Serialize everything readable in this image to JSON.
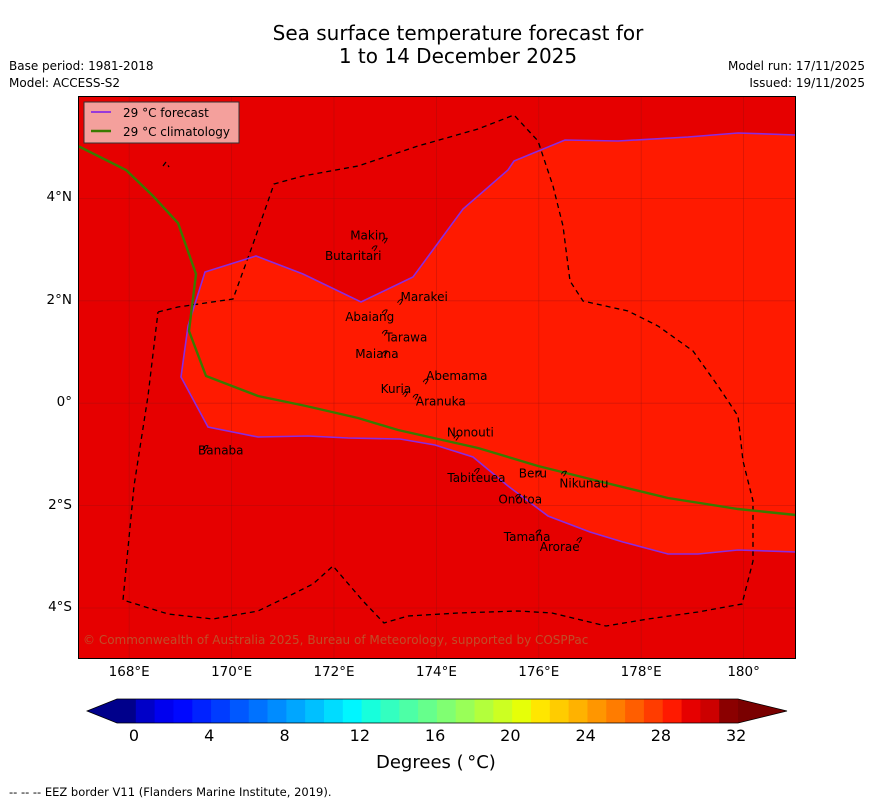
{
  "title": {
    "line1": "Sea surface temperature forecast for",
    "line2": "1 to 14 December 2025"
  },
  "meta": {
    "base_period": "Base period: 1981-2018",
    "model": "Model: ACCESS-S2",
    "model_run": "Model run: 17/11/2025",
    "issued": "Issued: 19/11/2025"
  },
  "legend": {
    "forecast": "29 °C  forecast",
    "climatology": "29 °C  climatology"
  },
  "lat_labels": [
    "4°N",
    "2°N",
    "0°",
    "2°S",
    "4°S"
  ],
  "lon_labels": [
    "168°E",
    "170°E",
    "172°E",
    "174°E",
    "176°E",
    "178°E",
    "180°"
  ],
  "islands": [
    {
      "name": "Makin",
      "lon": 173.0,
      "lat": 3.2
    },
    {
      "name": "Butaritari",
      "lon": 172.8,
      "lat": 3.05
    },
    {
      "name": "Marakei",
      "lon": 173.3,
      "lat": 2.0
    },
    {
      "name": "Abaiang",
      "lon": 173.0,
      "lat": 1.8
    },
    {
      "name": "Tarawa",
      "lon": 173.0,
      "lat": 1.4
    },
    {
      "name": "Maiana",
      "lon": 173.0,
      "lat": 1.0
    },
    {
      "name": "Abemama",
      "lon": 173.8,
      "lat": 0.45
    },
    {
      "name": "Kuria",
      "lon": 173.4,
      "lat": 0.2
    },
    {
      "name": "Aranuka",
      "lon": 173.6,
      "lat": 0.15
    },
    {
      "name": "Nonouti",
      "lon": 174.4,
      "lat": -0.65
    },
    {
      "name": "Banaba",
      "lon": 169.5,
      "lat": -0.85
    },
    {
      "name": "Beru",
      "lon": 176.0,
      "lat": -1.35
    },
    {
      "name": "Nikunau",
      "lon": 176.5,
      "lat": -1.35
    },
    {
      "name": "Tabiteuea",
      "lon": 174.8,
      "lat": -1.3
    },
    {
      "name": "Onotoa",
      "lon": 175.6,
      "lat": -1.8
    },
    {
      "name": "Tamana",
      "lon": 176.0,
      "lat": -2.5
    },
    {
      "name": "Arorae",
      "lon": 176.8,
      "lat": -2.65
    }
  ],
  "copyright": "© Commonwealth of Australia 2025, Bureau of Meteorology, supported by COSPPac",
  "colorbar": {
    "ticks": [
      "0",
      "4",
      "8",
      "12",
      "16",
      "20",
      "24",
      "28",
      "32"
    ],
    "title": "Degrees ( °C)",
    "colors": [
      "#00008b",
      "#0000c8",
      "#0000ef",
      "#0008ff",
      "#0022ff",
      "#003cff",
      "#0058ff",
      "#0072ff",
      "#008cff",
      "#00a6ff",
      "#00c0ff",
      "#00dcff",
      "#00f6ff",
      "#17ffdc",
      "#33ffc0",
      "#4dffa6",
      "#66ff8c",
      "#80ff72",
      "#99ff58",
      "#b3ff3c",
      "#ccff22",
      "#e6ff08",
      "#ffe600",
      "#ffcc00",
      "#ffb200",
      "#ff9600",
      "#ff7c00",
      "#ff5e00",
      "#ff3c00",
      "#ff1a00",
      "#e60000",
      "#cc0000",
      "#8b0000"
    ],
    "under_color": "#00008b",
    "over_color": "#7a0000"
  },
  "colors": {
    "warm_sst": "#e60000",
    "hot_sst": "#ff1a00",
    "forecast_line": "#8a2be2",
    "climatology_line": "#3a7a00"
  },
  "footer": "--  --  -- EEZ border V11 (Flanders Marine Institute, 2019)."
}
